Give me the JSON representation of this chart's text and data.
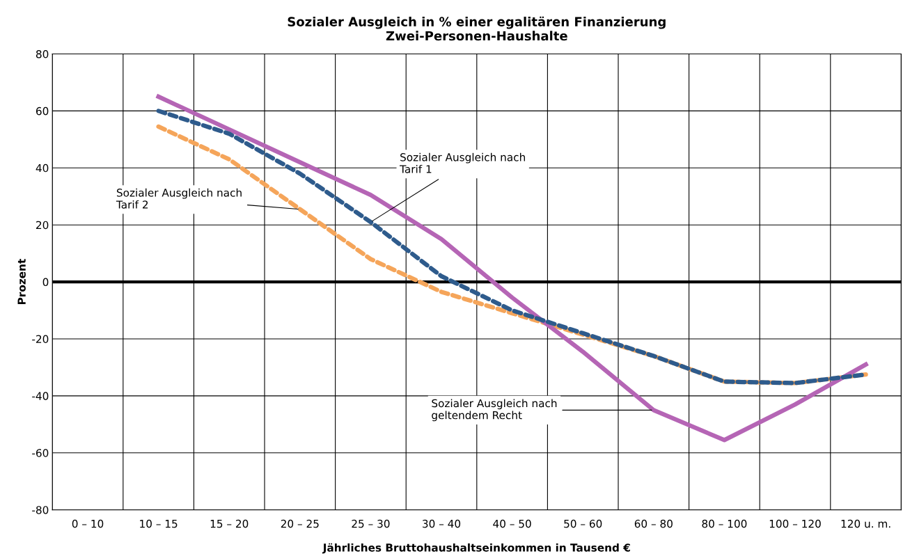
{
  "chart_data": {
    "type": "line",
    "title": "Sozialer Ausgleich in % einer egalitären Finanzierung\nZwei-Personen-Haushalte",
    "xlabel": "Jährliches Bruttohaushaltseinkommen in Tausend €",
    "ylabel": "Prozent",
    "categories": [
      "0 – 10",
      "10 – 15",
      "15 – 20",
      "20 – 25",
      "25 – 30",
      "30 – 40",
      "40 – 50",
      "50 – 60",
      "60 – 80",
      "80 – 100",
      "100 – 120",
      "120 u. m."
    ],
    "series": [
      {
        "color": "#2e5b8c",
        "line_style": "dashed",
        "values": [
          null,
          60,
          52,
          38,
          21,
          2,
          -10,
          -18,
          -26,
          -35,
          -35.5,
          -32.5
        ]
      },
      {
        "color": "#f5a55a",
        "line_style": "dashed",
        "values": [
          null,
          54.5,
          43,
          25.5,
          8,
          -3.5,
          -11,
          -18.5,
          -26,
          -35,
          -35.5,
          -32.5
        ]
      },
      {
        "color": "#b565b5",
        "line_style": "solid",
        "values": [
          null,
          65,
          53.5,
          42,
          30.5,
          15,
          -5.5,
          -24.5,
          -45,
          -55.5,
          -43,
          -29
        ]
      }
    ],
    "ylim": [
      -80,
      80
    ],
    "yticks": [
      -80,
      -60,
      -40,
      -20,
      0,
      20,
      40,
      60,
      80
    ],
    "grid": true,
    "legend": false,
    "ref_lines": [
      {
        "axis": "y",
        "value": 0,
        "color": "#000000"
      }
    ],
    "annotations": [
      {
        "text": "Sozialer Ausgleich nach\nTarif 1",
        "x": "25 – 30",
        "y": 21
      },
      {
        "text": "Sozialer Ausgleich nach\nTarif 2",
        "x": "20 – 25",
        "y": 25.5
      },
      {
        "text": "Sozialer Ausgleich nach\ngeltendem Recht",
        "x": "60 – 80",
        "y": -45
      }
    ]
  }
}
